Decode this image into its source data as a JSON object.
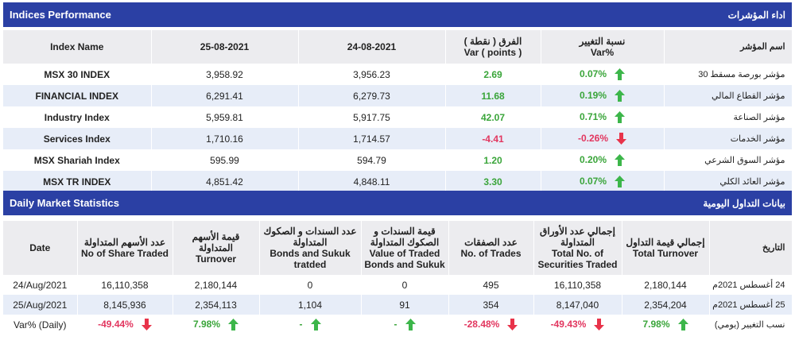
{
  "indices": {
    "title": "Indices Performance",
    "title_ar": "اداء المؤشرات",
    "headers": [
      "Index Name",
      "25-08-2021",
      "24-08-2021",
      [
        "الفرق ( نقطة )",
        "Var ( points )"
      ],
      [
        "نسبة التغيير",
        "Var%"
      ],
      "اسم المؤشر"
    ],
    "rows": [
      [
        "MSX 30 INDEX",
        "3,958.92",
        "3,956.23",
        "2.69",
        "0.07%",
        "مؤشر بورصة مسقط 30"
      ],
      [
        "FINANCIAL INDEX",
        "6,291.41",
        "6,279.73",
        "11.68",
        "0.19%",
        "مؤشر القطاع المالي"
      ],
      [
        "Industry Index",
        "5,959.81",
        "5,917.75",
        "42.07",
        "0.71%",
        "مؤشر الصناعة"
      ],
      [
        "Services Index",
        "1,710.16",
        "1,714.57",
        "-4.41",
        "-0.26%",
        "مؤشر الخدمات"
      ],
      [
        "MSX Shariah Index",
        "595.99",
        "594.79",
        "1.20",
        "0.20%",
        "مؤشر السوق الشرعي"
      ],
      [
        "MSX TR INDEX",
        "4,851.42",
        "4,848.11",
        "3.30",
        "0.07%",
        "مؤشر العائد الكلي"
      ]
    ],
    "arrows": [
      "up",
      "up",
      "up",
      "down",
      "up",
      "up"
    ]
  },
  "daily": {
    "title": "Daily Market Statistics",
    "title_ar": "بيانات التداول اليومية",
    "headers": [
      "Date",
      [
        "عدد الأسهم المتداولة",
        "No of Share Traded"
      ],
      [
        "قيمة الأسهم المتداولة",
        "Turnover"
      ],
      [
        "عدد السندات و الصكوك المتداولة",
        "Bonds and Sukuk tratded"
      ],
      [
        "قيمة السندات و الصكوك المتداولة",
        "Value of Traded Bonds and Sukuk"
      ],
      [
        "عدد الصفقات",
        "No. of Trades"
      ],
      [
        "إجمالي عدد الأوراق المتداولة",
        "Total No. of Securities Traded"
      ],
      [
        "إجمالي قيمة التداول",
        "Total Turnover"
      ],
      "التاريخ"
    ],
    "rows": [
      [
        "24/Aug/2021",
        "16,110,358",
        "2,180,144",
        "0",
        "0",
        "495",
        "16,110,358",
        "2,180,144",
        "24 أغسطس 2021م"
      ],
      [
        "25/Aug/2021",
        "8,145,936",
        "2,354,113",
        "1,104",
        "91",
        "354",
        "8,147,040",
        "2,354,204",
        "25 أغسطس 2021م"
      ]
    ],
    "var_row": {
      "label": "Var% (Daily)",
      "cells": [
        "-49.44%",
        "7.98%",
        "-",
        "-",
        "-28.48%",
        "-49.43%",
        "7.98%"
      ],
      "arrows": [
        "down",
        "up",
        "up",
        "up",
        "down",
        "down",
        "up"
      ],
      "label_ar": "نسب التغيير (يومي)"
    }
  }
}
